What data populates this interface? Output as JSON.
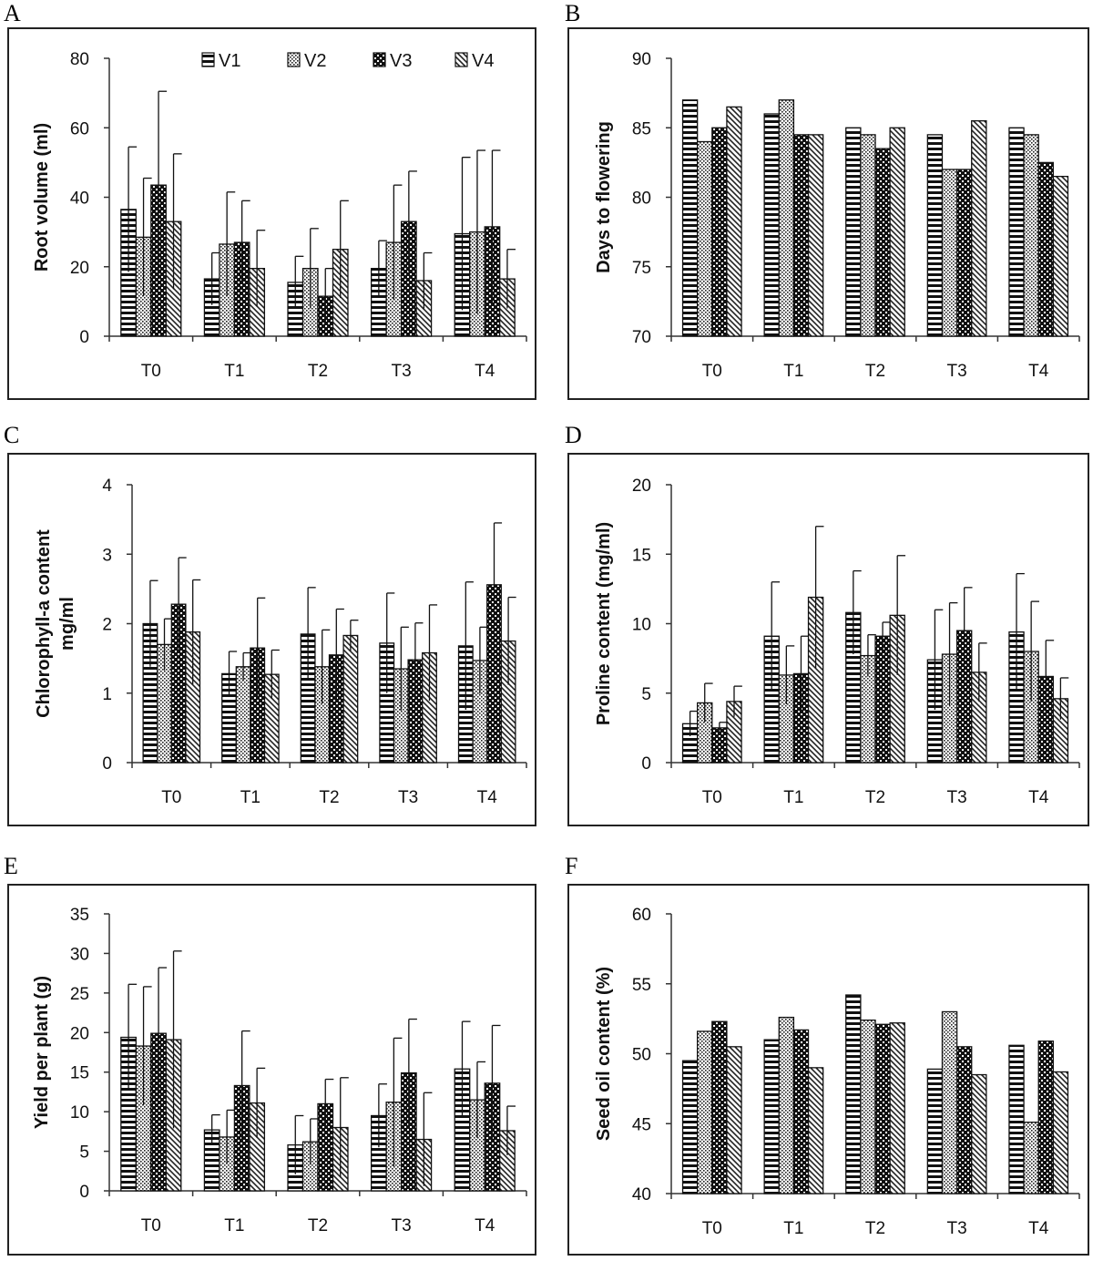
{
  "figure": {
    "categories": [
      "T0",
      "T1",
      "T2",
      "T3",
      "T4"
    ],
    "series_names": [
      "V1",
      "V2",
      "V3",
      "V4"
    ],
    "series_patterns": [
      "hstripe",
      "dots",
      "checker",
      "diag"
    ]
  },
  "chart_data": [
    {
      "id": "A",
      "type": "bar",
      "title": "",
      "panel_label": "A",
      "ylabel": "Root volume  (ml)",
      "xlabel": "",
      "ylim": [
        0,
        80
      ],
      "yticks": [
        0,
        20,
        40,
        60,
        80
      ],
      "grid": false,
      "legend": "top",
      "categories": [
        "T0",
        "T1",
        "T2",
        "T3",
        "T4"
      ],
      "series": [
        {
          "name": "V1",
          "values": [
            36.5,
            16.5,
            15.5,
            19.5,
            29.5
          ],
          "errors": [
            18,
            7.5,
            7.5,
            8,
            22
          ]
        },
        {
          "name": "V2",
          "values": [
            28.5,
            26.5,
            19.5,
            27,
            30
          ],
          "errors": [
            17,
            15,
            11.5,
            16.5,
            23.5
          ]
        },
        {
          "name": "V3",
          "values": [
            43.5,
            27,
            11.5,
            33,
            31.5
          ],
          "errors": [
            27,
            12,
            8,
            14.5,
            22
          ]
        },
        {
          "name": "V4",
          "values": [
            33,
            19.5,
            25,
            16,
            16.5
          ],
          "errors": [
            19.5,
            11,
            14,
            8,
            8.5
          ]
        }
      ]
    },
    {
      "id": "B",
      "type": "bar",
      "title": "",
      "panel_label": "B",
      "ylabel": "Days to flowering",
      "xlabel": "",
      "ylim": [
        70,
        90
      ],
      "yticks": [
        70,
        75,
        80,
        85,
        90
      ],
      "grid": false,
      "legend": "none",
      "categories": [
        "T0",
        "T1",
        "T2",
        "T3",
        "T4"
      ],
      "series": [
        {
          "name": "V1",
          "values": [
            87,
            86,
            85,
            84.5,
            85
          ],
          "errors": [
            0,
            0,
            0,
            0,
            0
          ]
        },
        {
          "name": "V2",
          "values": [
            84,
            87,
            84.5,
            82,
            84.5
          ],
          "errors": [
            0,
            0,
            0,
            0,
            0
          ]
        },
        {
          "name": "V3",
          "values": [
            85,
            84.5,
            83.5,
            82,
            82.5
          ],
          "errors": [
            0,
            0,
            0,
            0,
            0
          ]
        },
        {
          "name": "V4",
          "values": [
            86.5,
            84.5,
            85,
            85.5,
            81.5
          ],
          "errors": [
            0,
            0,
            0,
            0,
            0
          ]
        }
      ]
    },
    {
      "id": "C",
      "type": "bar",
      "title": "",
      "panel_label": "C",
      "ylabel": "Chlorophyll-a content\nmg/ml",
      "xlabel": "",
      "ylim": [
        0,
        4
      ],
      "yticks": [
        0,
        1,
        2,
        3,
        4
      ],
      "grid": false,
      "legend": "none",
      "categories": [
        "T0",
        "T1",
        "T2",
        "T3",
        "T4"
      ],
      "series": [
        {
          "name": "V1",
          "values": [
            2.0,
            1.28,
            1.85,
            1.72,
            1.68
          ],
          "errors": [
            0.62,
            0.32,
            0.67,
            0.72,
            0.92
          ]
        },
        {
          "name": "V2",
          "values": [
            1.7,
            1.38,
            1.38,
            1.35,
            1.47
          ],
          "errors": [
            0.37,
            0.2,
            0.53,
            0.6,
            0.48
          ]
        },
        {
          "name": "V3",
          "values": [
            2.28,
            1.65,
            1.55,
            1.48,
            2.56
          ],
          "errors": [
            0.67,
            0.72,
            0.66,
            0.53,
            0.89
          ]
        },
        {
          "name": "V4",
          "values": [
            1.88,
            1.27,
            1.83,
            1.58,
            1.75
          ],
          "errors": [
            0.75,
            0.35,
            0.22,
            0.69,
            0.63
          ]
        }
      ]
    },
    {
      "id": "D",
      "type": "bar",
      "title": "",
      "panel_label": "D",
      "ylabel": "Proline content  (mg/ml)",
      "xlabel": "",
      "ylim": [
        0,
        20
      ],
      "yticks": [
        0,
        5,
        10,
        15,
        20
      ],
      "grid": false,
      "legend": "none",
      "categories": [
        "T0",
        "T1",
        "T2",
        "T3",
        "T4"
      ],
      "series": [
        {
          "name": "V1",
          "values": [
            2.8,
            9.1,
            10.8,
            7.4,
            9.4
          ],
          "errors": [
            0.9,
            3.9,
            3.0,
            3.6,
            4.2
          ]
        },
        {
          "name": "V2",
          "values": [
            4.3,
            6.3,
            7.7,
            7.8,
            8.0
          ],
          "errors": [
            1.4,
            2.1,
            1.5,
            3.7,
            3.6
          ]
        },
        {
          "name": "V3",
          "values": [
            2.5,
            6.4,
            9.1,
            9.5,
            6.2
          ],
          "errors": [
            0.4,
            2.7,
            1.0,
            3.1,
            2.6
          ]
        },
        {
          "name": "V4",
          "values": [
            4.4,
            11.9,
            10.6,
            6.5,
            4.6
          ],
          "errors": [
            1.1,
            5.1,
            4.3,
            2.1,
            1.5
          ]
        }
      ]
    },
    {
      "id": "E",
      "type": "bar",
      "title": "",
      "panel_label": "E",
      "ylabel": "Yield per plant  (g)",
      "xlabel": "",
      "ylim": [
        0,
        35
      ],
      "yticks": [
        0,
        5,
        10,
        15,
        20,
        25,
        30,
        35
      ],
      "grid": false,
      "legend": "none",
      "categories": [
        "T0",
        "T1",
        "T2",
        "T3",
        "T4"
      ],
      "series": [
        {
          "name": "V1",
          "values": [
            19.4,
            7.7,
            5.8,
            9.5,
            15.4
          ],
          "errors": [
            6.7,
            1.9,
            3.7,
            4.0,
            6.0
          ]
        },
        {
          "name": "V2",
          "values": [
            18.3,
            6.8,
            6.2,
            11.2,
            11.5
          ],
          "errors": [
            7.5,
            3.4,
            2.9,
            8.1,
            4.8
          ]
        },
        {
          "name": "V3",
          "values": [
            19.9,
            13.3,
            11.0,
            14.9,
            13.6
          ],
          "errors": [
            8.3,
            6.9,
            3.1,
            6.8,
            7.3
          ]
        },
        {
          "name": "V4",
          "values": [
            19.1,
            11.1,
            8.0,
            6.5,
            7.6
          ],
          "errors": [
            11.2,
            4.4,
            6.3,
            5.9,
            3.1
          ]
        }
      ]
    },
    {
      "id": "F",
      "type": "bar",
      "title": "",
      "panel_label": "F",
      "ylabel": "Seed oil content (%)",
      "xlabel": "",
      "ylim": [
        40,
        60
      ],
      "yticks": [
        40,
        45,
        50,
        55,
        60
      ],
      "grid": false,
      "legend": "none",
      "categories": [
        "T0",
        "T1",
        "T2",
        "T3",
        "T4"
      ],
      "series": [
        {
          "name": "V1",
          "values": [
            49.5,
            51,
            54.2,
            48.9,
            50.6
          ],
          "errors": [
            0,
            0,
            0,
            0,
            0
          ]
        },
        {
          "name": "V2",
          "values": [
            51.6,
            52.6,
            52.4,
            53,
            45.1
          ],
          "errors": [
            0,
            0,
            0,
            0,
            0
          ]
        },
        {
          "name": "V3",
          "values": [
            52.3,
            51.7,
            52.1,
            50.5,
            50.9
          ],
          "errors": [
            0,
            0,
            0,
            0,
            0
          ]
        },
        {
          "name": "V4",
          "values": [
            50.5,
            49,
            52.2,
            48.5,
            48.7
          ],
          "errors": [
            0,
            0,
            0,
            0,
            0
          ]
        }
      ]
    }
  ]
}
